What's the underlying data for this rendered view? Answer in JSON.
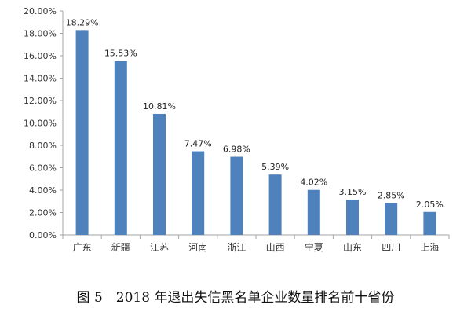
{
  "chart_data": {
    "type": "bar",
    "categories": [
      "广东",
      "新疆",
      "江苏",
      "河南",
      "浙江",
      "山西",
      "宁夏",
      "山东",
      "四川",
      "上海"
    ],
    "values": [
      18.29,
      15.53,
      10.81,
      7.47,
      6.98,
      5.39,
      4.02,
      3.15,
      2.85,
      2.05
    ],
    "data_labels": [
      "18.29%",
      "15.53%",
      "10.81%",
      "7.47%",
      "6.98%",
      "5.39%",
      "4.02%",
      "3.15%",
      "2.85%",
      "2.05%"
    ],
    "y_ticks": [
      "0.00%",
      "2.00%",
      "4.00%",
      "6.00%",
      "8.00%",
      "10.00%",
      "12.00%",
      "14.00%",
      "16.00%",
      "18.00%",
      "20.00%"
    ],
    "ylim": [
      0,
      20
    ],
    "grid": false,
    "bar_color": "#4f81bd",
    "axis_color": "#a6a6a6"
  },
  "caption": "图 5　2018 年退出失信黑名单企业数量排名前十省份"
}
